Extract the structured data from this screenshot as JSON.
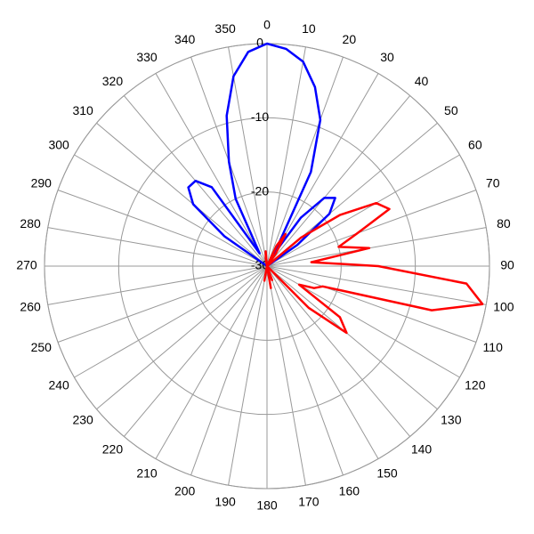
{
  "chart_data": {
    "type": "polar_line",
    "theta": [
      0,
      5,
      10,
      15,
      20,
      25,
      30,
      35,
      40,
      45,
      50,
      55,
      60,
      65,
      70,
      75,
      80,
      85,
      90,
      95,
      100,
      105,
      110,
      115,
      120,
      125,
      130,
      135,
      140,
      145,
      150,
      155,
      160,
      165,
      170,
      175,
      180,
      185,
      190,
      195,
      200,
      205,
      210,
      215,
      220,
      225,
      230,
      235,
      240,
      245,
      250,
      255,
      260,
      265,
      270,
      275,
      280,
      285,
      290,
      295,
      300,
      305,
      310,
      315,
      320,
      325,
      330,
      335,
      340,
      345,
      350,
      355
    ],
    "series": [
      {
        "color": "#0000ff",
        "values": [
          0,
          -0.6,
          -2,
          -5,
          -9,
          -16,
          -28,
          -22,
          -18,
          -17,
          -19,
          -25,
          -30,
          -30,
          -30,
          -30,
          -30,
          -30,
          -30,
          -30,
          -30,
          -30,
          -30,
          -30,
          -30,
          -30,
          -30,
          -30,
          -30,
          -30,
          -30,
          -30,
          -30,
          -30,
          -30,
          -30,
          -30,
          -30,
          -30,
          -30,
          -30,
          -30,
          -30,
          -30,
          -30,
          -30,
          -30,
          -30,
          -30,
          -30,
          -30,
          -30,
          -30,
          -30,
          -30,
          -30,
          -30,
          -30,
          -30,
          -30,
          -30,
          -23,
          -17,
          -15,
          -15,
          -17,
          -28,
          -20,
          -15,
          -9,
          -4,
          -1
        ]
      },
      {
        "color": "#ff0000",
        "values": [
          -30,
          -30,
          -30,
          -30,
          -30,
          -27,
          -25,
          -28,
          -30,
          -30,
          -24,
          -18,
          -13,
          -11.8,
          -17,
          -20,
          -16,
          -24,
          -15,
          -3,
          -0.5,
          -7,
          -22,
          -23,
          -25,
          -18,
          -16,
          -22,
          -30,
          -30,
          -30,
          -30,
          -28,
          -30,
          -27,
          -30,
          -30,
          -30,
          -28,
          -30,
          -30,
          -30,
          -30,
          -30,
          -30,
          -30,
          -30,
          -30,
          -30,
          -30,
          -30,
          -30,
          -30,
          -30,
          -30,
          -30,
          -30,
          -30,
          -30,
          -30,
          -30,
          -30,
          -30,
          -30,
          -30,
          -30,
          -30,
          -30,
          -30,
          -30,
          -29,
          -28
        ]
      }
    ],
    "rlim": [
      -30,
      0
    ],
    "rticks": [
      0,
      -10,
      -20,
      -30
    ],
    "thetaticks": [
      0,
      10,
      20,
      30,
      40,
      50,
      60,
      70,
      80,
      90,
      100,
      110,
      120,
      130,
      140,
      150,
      160,
      170,
      180,
      190,
      200,
      210,
      220,
      230,
      240,
      250,
      260,
      270,
      280,
      290,
      300,
      310,
      320,
      330,
      340,
      350
    ],
    "grid": true
  }
}
